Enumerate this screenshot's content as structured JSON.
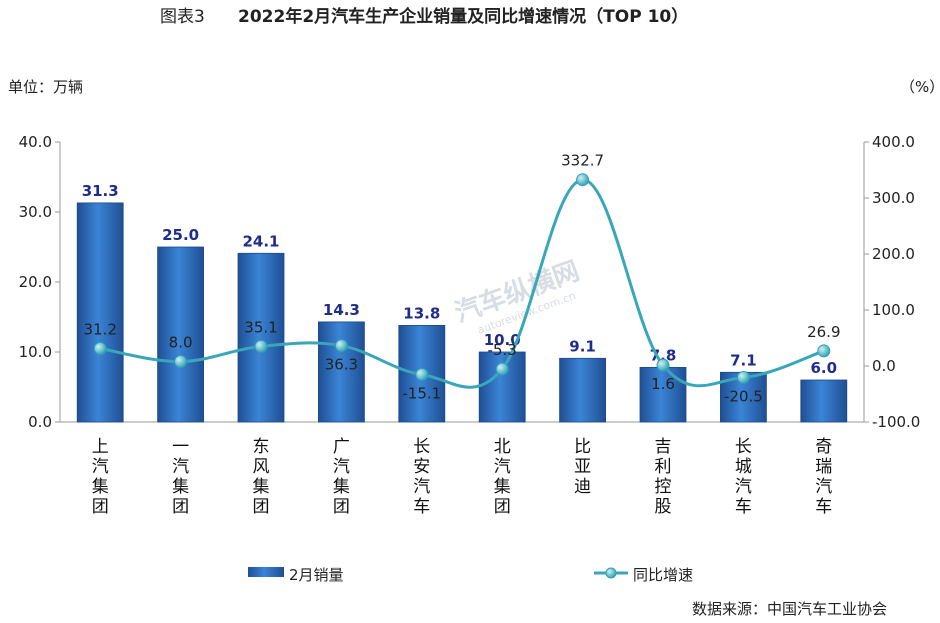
{
  "header": {
    "figure_no": "图表3",
    "title": "2022年2月汽车生产企业销量及同比增速情况（TOP 10）"
  },
  "units": {
    "left": "单位：万辆",
    "right": "（%）"
  },
  "source": "数据来源：中国汽车工业协会",
  "watermark": {
    "main": "汽车纵横网",
    "sub": "autoreview.com.cn"
  },
  "colors": {
    "bar": "#2e6fbd",
    "line": "#3aa6b9",
    "marker": "#49b8c8"
  },
  "chart_data": {
    "type": "bar",
    "categories": [
      "上汽集团",
      "一汽集团",
      "东风集团",
      "广汽集团",
      "长安汽车",
      "北汽集团",
      "比亚迪",
      "吉利控股",
      "长城汽车",
      "奇瑞汽车"
    ],
    "series": [
      {
        "name": "2月销量",
        "type": "bar",
        "axis": "left",
        "values": [
          31.3,
          25.0,
          24.1,
          14.3,
          13.8,
          10.0,
          9.1,
          7.8,
          7.1,
          6.0
        ]
      },
      {
        "name": "同比增速",
        "type": "line",
        "axis": "right",
        "values": [
          31.2,
          8.0,
          35.1,
          36.3,
          -15.1,
          -5.3,
          332.7,
          1.6,
          -20.5,
          26.9
        ]
      }
    ],
    "bar_labels": [
      "31.3",
      "25.0",
      "24.1",
      "14.3",
      "13.8",
      "10.0",
      "9.1",
      "7.8",
      "7.1",
      "6.0"
    ],
    "line_labels": [
      "31.2",
      "8.0",
      "35.1",
      "36.3",
      "-15.1",
      "-5.3",
      "332.7",
      "1.6",
      "-20.5",
      "26.9"
    ],
    "y_left": {
      "min": 0,
      "max": 40,
      "ticks": [
        "0.0",
        "10.0",
        "20.0",
        "30.0",
        "40.0"
      ],
      "tick_values": [
        0,
        10,
        20,
        30,
        40
      ]
    },
    "y_right": {
      "min": -100,
      "max": 400,
      "ticks": [
        "-100.0",
        "0.0",
        "100.0",
        "200.0",
        "300.0",
        "400.0"
      ],
      "tick_values": [
        -100,
        0,
        100,
        200,
        300,
        400
      ]
    },
    "legend": [
      "2月销量",
      "同比增速"
    ],
    "legend_position": "bottom",
    "grid": false
  }
}
